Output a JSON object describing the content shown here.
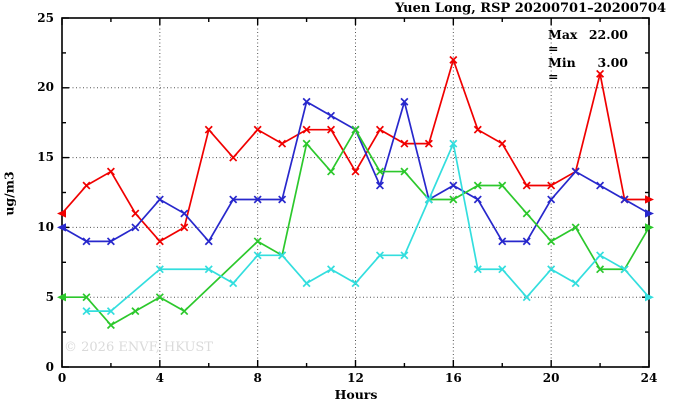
{
  "chart": {
    "title": "Yuen Long, RSP 20200701–20200704",
    "stats": {
      "max_label": "Max =",
      "max_value": "22.00",
      "min_label": "Min =",
      "min_value": "3.00"
    },
    "ylabel": "ug/m3",
    "xlabel": "Hours",
    "watermark": "© 2026 ENVF, HKUST"
  },
  "chart_data": {
    "type": "line",
    "title": "Yuen Long, RSP 20200701-20200704",
    "xlabel": "Hours",
    "ylabel": "ug/m3",
    "x": [
      0,
      1,
      2,
      3,
      4,
      5,
      6,
      7,
      8,
      9,
      10,
      11,
      12,
      13,
      14,
      15,
      16,
      17,
      18,
      19,
      20,
      21,
      22,
      23,
      24
    ],
    "series": [
      {
        "name": "red",
        "color": "#f00000",
        "values": [
          11,
          13,
          14,
          11,
          9,
          10,
          17,
          15,
          17,
          16,
          17,
          17,
          14,
          17,
          16,
          16,
          22,
          17,
          16,
          13,
          13,
          14,
          21,
          12,
          12
        ]
      },
      {
        "name": "blue",
        "color": "#2828cc",
        "values": [
          10,
          9,
          9,
          10,
          12,
          11,
          9,
          12,
          12,
          12,
          19,
          18,
          17,
          13,
          19,
          12,
          13,
          12,
          9,
          9,
          12,
          14,
          13,
          12,
          11
        ]
      },
      {
        "name": "green",
        "color": "#2cc82c",
        "values": [
          5,
          5,
          3,
          4,
          5,
          4,
          null,
          null,
          9,
          8,
          16,
          14,
          17,
          14,
          14,
          12,
          12,
          13,
          13,
          11,
          9,
          10,
          7,
          7,
          10
        ]
      },
      {
        "name": "cyan",
        "color": "#33dede",
        "values": [
          null,
          4,
          4,
          null,
          7,
          null,
          7,
          6,
          8,
          8,
          6,
          7,
          6,
          8,
          8,
          12,
          16,
          7,
          7,
          5,
          7,
          6,
          8,
          7,
          5
        ]
      }
    ],
    "xlim": [
      0,
      24
    ],
    "ylim": [
      0,
      25
    ],
    "x_ticks": [
      0,
      4,
      8,
      12,
      16,
      20,
      24
    ],
    "y_ticks": [
      0,
      5,
      10,
      15,
      20,
      25
    ],
    "x_minor_ticks": [
      2,
      6,
      10,
      14,
      18,
      22
    ],
    "y_minor_ticks": [
      2.5,
      7.5,
      12.5,
      17.5,
      22.5
    ],
    "grid": true,
    "legend": "none",
    "max": 22.0,
    "min": 3.0
  }
}
